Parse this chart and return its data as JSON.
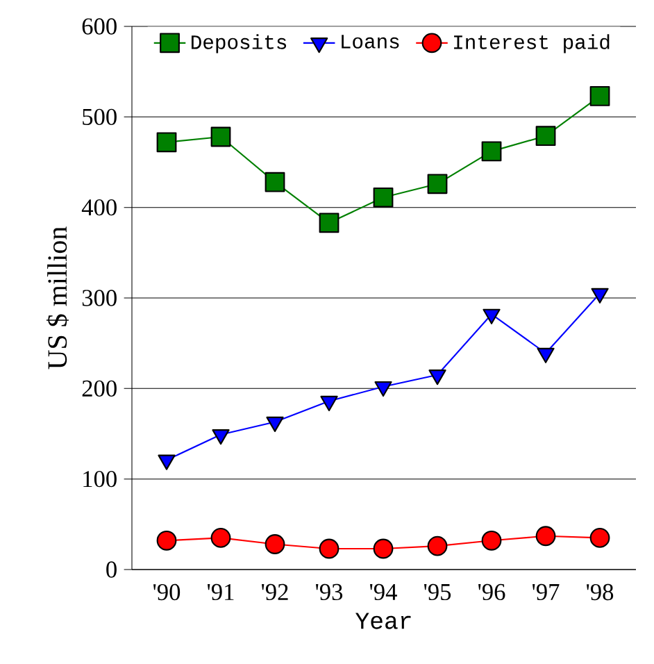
{
  "chart_data": {
    "type": "line",
    "xlabel": "Year",
    "ylabel": "US $ million",
    "categories": [
      "'90",
      "'91",
      "'92",
      "'93",
      "'94",
      "'95",
      "'96",
      "'97",
      "'98"
    ],
    "series": [
      {
        "name": "Deposits",
        "color": "#008000",
        "marker": "square",
        "values": [
          472,
          478,
          428,
          383,
          411,
          426,
          462,
          479,
          523
        ]
      },
      {
        "name": "Loans",
        "color": "#0000ff",
        "marker": "triangle",
        "values": [
          121,
          149,
          163,
          186,
          202,
          215,
          282,
          239,
          305
        ]
      },
      {
        "name": "Interest paid",
        "color": "#ff0000",
        "marker": "circle",
        "values": [
          32,
          35,
          28,
          23,
          23,
          26,
          32,
          37,
          35
        ]
      }
    ],
    "ylim": [
      0,
      600
    ],
    "yticks": [
      0,
      100,
      200,
      300,
      400,
      500,
      600
    ],
    "grid": "y",
    "legend": "top"
  }
}
